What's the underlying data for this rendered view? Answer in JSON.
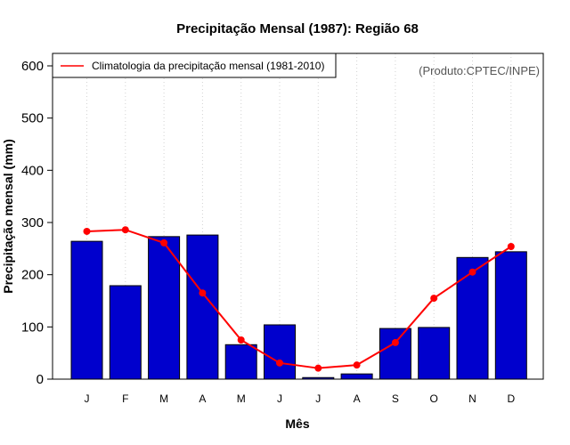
{
  "chart_data": {
    "type": "bar",
    "title": "Precipitação Mensal (1987): Região 68",
    "xlabel": "Mês",
    "ylabel": "Precipitação mensal (mm)",
    "ylim": [
      0,
      600
    ],
    "yticks": [
      0,
      100,
      200,
      300,
      400,
      500,
      600
    ],
    "ytick_labels": [
      "0",
      "100",
      "200",
      "300",
      "400",
      "500",
      "600"
    ],
    "categories": [
      "J",
      "F",
      "M",
      "A",
      "M",
      "J",
      "J",
      "A",
      "S",
      "O",
      "N",
      "D"
    ],
    "grid": "vertical dotted",
    "series": [
      {
        "name": "Precipitação mensal (1987)",
        "type": "bar",
        "color": "#0000cd",
        "values": [
          264,
          179,
          273,
          276,
          66,
          104,
          3,
          10,
          97,
          99,
          233,
          244
        ]
      },
      {
        "name": "Climatologia da precipitação mensal (1981-2010)",
        "type": "line",
        "color": "#ff0000",
        "marker": "circle",
        "values": [
          283,
          286,
          261,
          165,
          75,
          31,
          21,
          27,
          70,
          155,
          205,
          254
        ]
      }
    ],
    "legend": {
      "position": "top-left",
      "entries": [
        "Climatologia da precipitação mensal (1981-2010)"
      ]
    },
    "annotation": "(Produto:CPTEC/INPE)"
  }
}
